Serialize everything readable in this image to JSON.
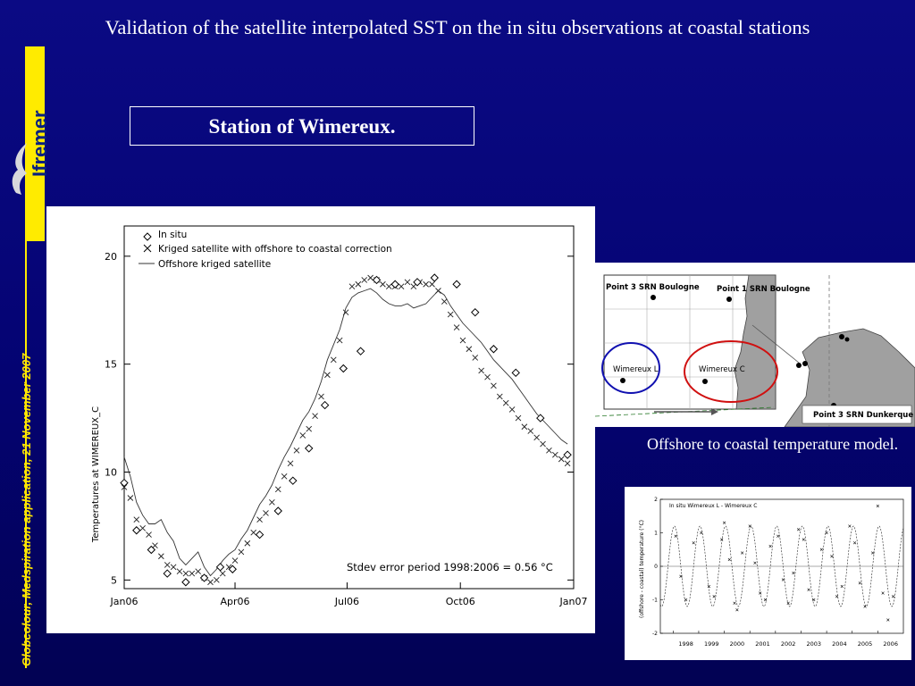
{
  "slide": {
    "title": "Validation of the satellite interpolated SST on the in situ observations at coastal stations",
    "brand": "Ifremer",
    "side_text": "Globcolour, Medspiration application, 21 November 2007",
    "station_title": "Station of Wimereux.",
    "caption": "Offshore to coastal temperature model."
  },
  "colors": {
    "background": "#06057a",
    "accent": "#ffeb00",
    "circle_blue": "#1010b0",
    "circle_red": "#d01010"
  },
  "chart_data": [
    {
      "type": "line",
      "xlabel": "",
      "ylabel": "Temperatures at WIMEREUX_C",
      "x_ticks": [
        "Jan06",
        "Apr06",
        "Jul06",
        "Oct06",
        "Jan07"
      ],
      "x_tick_days": [
        0,
        90,
        181,
        273,
        365
      ],
      "y_ticks": [
        5,
        10,
        15,
        20
      ],
      "ylim": [
        4.6,
        21.4
      ],
      "xlim": [
        0,
        365
      ],
      "grid": false,
      "legend_position": "top-left",
      "legend": [
        "In situ",
        "Kriged satellite with offshore to coastal correction",
        "Offshore kriged satellite"
      ],
      "annotation": "Stdev error period 1998:2006 = 0.56 °C",
      "series": [
        {
          "name": "In situ",
          "marker": "diamond",
          "x": [
            0,
            10,
            22,
            35,
            50,
            65,
            78,
            88,
            110,
            125,
            137,
            150,
            163,
            178,
            192,
            205,
            220,
            238,
            252,
            270,
            285,
            300,
            318,
            338,
            360
          ],
          "y": [
            9.5,
            7.3,
            6.4,
            5.3,
            4.9,
            5.1,
            5.6,
            5.5,
            7.1,
            8.2,
            9.6,
            11.1,
            13.1,
            14.8,
            15.6,
            18.9,
            18.7,
            18.8,
            19.0,
            18.7,
            17.4,
            15.7,
            14.6,
            12.5,
            10.8
          ]
        },
        {
          "name": "Kriged satellite with offshore to coastal correction",
          "marker": "x",
          "x": [
            0,
            5,
            10,
            15,
            20,
            25,
            30,
            35,
            40,
            45,
            50,
            55,
            60,
            65,
            70,
            75,
            80,
            85,
            90,
            95,
            100,
            105,
            110,
            115,
            120,
            125,
            130,
            135,
            140,
            145,
            150,
            155,
            160,
            165,
            170,
            175,
            180,
            185,
            190,
            195,
            200,
            205,
            210,
            215,
            220,
            225,
            230,
            235,
            240,
            245,
            250,
            255,
            260,
            265,
            270,
            275,
            280,
            285,
            290,
            295,
            300,
            305,
            310,
            315,
            320,
            325,
            330,
            335,
            340,
            345,
            350,
            355,
            360
          ],
          "y": [
            9.3,
            8.8,
            7.8,
            7.4,
            7.1,
            6.6,
            6.1,
            5.7,
            5.6,
            5.4,
            5.3,
            5.3,
            5.4,
            5.1,
            4.9,
            5.0,
            5.3,
            5.6,
            5.9,
            6.3,
            6.7,
            7.2,
            7.8,
            8.1,
            8.6,
            9.2,
            9.8,
            10.4,
            11.0,
            11.7,
            12.0,
            12.6,
            13.5,
            14.5,
            15.2,
            16.1,
            17.4,
            18.6,
            18.7,
            18.9,
            19.0,
            18.9,
            18.7,
            18.6,
            18.6,
            18.6,
            18.8,
            18.6,
            18.8,
            18.7,
            18.7,
            18.4,
            17.9,
            17.3,
            16.7,
            16.1,
            15.7,
            15.3,
            14.7,
            14.4,
            14.0,
            13.5,
            13.2,
            12.9,
            12.5,
            12.1,
            11.9,
            11.6,
            11.3,
            11.0,
            10.8,
            10.6,
            10.4
          ]
        },
        {
          "name": "Offshore kriged satellite",
          "marker": "line",
          "x": [
            0,
            5,
            10,
            15,
            20,
            25,
            30,
            35,
            40,
            45,
            50,
            55,
            60,
            65,
            70,
            75,
            80,
            85,
            90,
            95,
            100,
            105,
            110,
            115,
            120,
            125,
            130,
            135,
            140,
            145,
            150,
            155,
            160,
            165,
            170,
            175,
            180,
            185,
            190,
            195,
            200,
            205,
            210,
            215,
            220,
            225,
            230,
            235,
            240,
            245,
            250,
            255,
            260,
            265,
            270,
            275,
            280,
            285,
            290,
            295,
            300,
            305,
            310,
            315,
            320,
            325,
            330,
            335,
            340,
            345,
            350,
            355,
            360
          ],
          "y": [
            10.7,
            9.8,
            8.6,
            8.0,
            7.6,
            7.6,
            7.8,
            7.2,
            6.8,
            6.0,
            5.7,
            6.0,
            6.3,
            5.6,
            5.2,
            5.5,
            5.9,
            6.2,
            6.4,
            6.9,
            7.3,
            7.9,
            8.5,
            8.9,
            9.4,
            10.1,
            10.7,
            11.2,
            11.8,
            12.4,
            12.8,
            13.4,
            14.2,
            15.2,
            15.9,
            16.6,
            17.6,
            18.1,
            18.3,
            18.4,
            18.5,
            18.3,
            18.0,
            17.8,
            17.7,
            17.7,
            17.8,
            17.6,
            17.7,
            17.8,
            18.1,
            18.4,
            18.2,
            17.7,
            17.3,
            16.9,
            16.6,
            16.3,
            16.0,
            15.6,
            15.2,
            14.9,
            14.6,
            14.3,
            13.9,
            13.5,
            13.1,
            12.7,
            12.4,
            12.1,
            11.8,
            11.5,
            11.3
          ]
        }
      ]
    },
    {
      "type": "line",
      "legend": [
        "In situ Wimereux L - Wimereux C"
      ],
      "ylabel": "(offshore - coastal) temperature (°C)",
      "x_ticks": [
        "1998",
        "1999",
        "2000",
        "2001",
        "2002",
        "2003",
        "2004",
        "2005",
        "2006"
      ],
      "y_ticks": [
        2,
        1,
        0,
        -1,
        -2
      ],
      "ylim": [
        -2,
        2
      ],
      "xlim": [
        1997.5,
        2007
      ],
      "series": [
        {
          "name": "model",
          "style": "dashed",
          "amplitude": 1.2,
          "period_years": 1,
          "phase_year": 0.05
        },
        {
          "name": "In situ Wimereux L - Wimereux C",
          "marker": "x",
          "x": [
            1998.1,
            1998.3,
            1998.5,
            1998.8,
            1999.1,
            1999.4,
            1999.6,
            1999.9,
            2000.0,
            2000.2,
            2000.4,
            2000.5,
            2000.7,
            2001.0,
            2001.2,
            2001.4,
            2001.6,
            2001.8,
            2002.1,
            2002.3,
            2002.5,
            2002.7,
            2002.9,
            2003.1,
            2003.3,
            2003.5,
            2003.8,
            2004.0,
            2004.2,
            2004.4,
            2004.6,
            2004.9,
            2005.1,
            2005.3,
            2005.5,
            2005.8,
            2006.0,
            2006.2,
            2006.4,
            2006.6
          ],
          "y": [
            0.9,
            -0.3,
            -1.0,
            0.7,
            1.0,
            -0.6,
            -0.9,
            0.8,
            1.3,
            0.2,
            -1.1,
            -1.3,
            0.4,
            1.2,
            0.1,
            -0.8,
            -1.0,
            0.6,
            0.9,
            -0.4,
            -1.1,
            -0.2,
            1.1,
            0.8,
            -0.7,
            -1.0,
            0.5,
            1.0,
            0.3,
            -0.9,
            -0.6,
            1.2,
            0.7,
            -0.5,
            -1.2,
            0.4,
            1.8,
            -0.8,
            -1.6,
            -0.9
          ]
        }
      ]
    }
  ],
  "map": {
    "labels": [
      "Point 3 SRN Boulogne",
      "Point 1 SRN Boulogne",
      "Wimereux L",
      "Wimereux C",
      "Point 3 SRN Dunkerque"
    ]
  }
}
